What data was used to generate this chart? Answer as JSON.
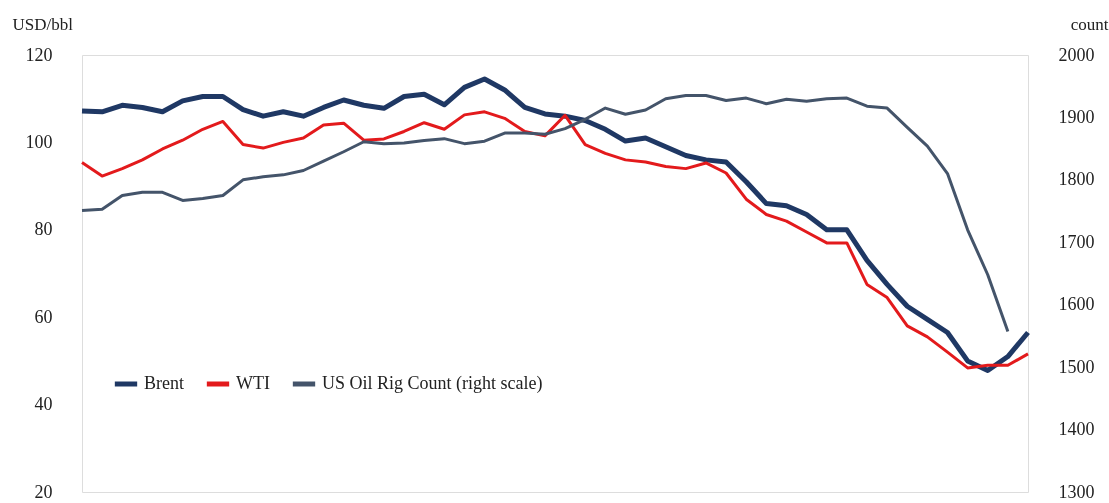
{
  "chart_data": {
    "type": "line",
    "categories": [
      null,
      null,
      null,
      null,
      null,
      null,
      null,
      null,
      null,
      null,
      null,
      null,
      null,
      null,
      null,
      null,
      null,
      null,
      null,
      null,
      null,
      null,
      null,
      null,
      null,
      null,
      null,
      null,
      null,
      null,
      null,
      null,
      null,
      null,
      null,
      null,
      null,
      null,
      null,
      null,
      null,
      null,
      null,
      null,
      null,
      null,
      null,
      null
    ],
    "ylabel": "USD/bbl",
    "y2label": "count",
    "ylim": [
      20,
      120
    ],
    "yticks": [
      20,
      40,
      60,
      80,
      100,
      120
    ],
    "y2lim": [
      1300,
      2000
    ],
    "y2ticks": [
      1300,
      1400,
      1500,
      1600,
      1700,
      1800,
      1900,
      2000
    ],
    "legend": "bottom left",
    "series": [
      {
        "name": "Brent",
        "color": "#1f3864",
        "values": [
          107.2,
          107,
          108.5,
          108,
          107,
          109.5,
          110.5,
          110.5,
          107.5,
          106,
          107,
          106,
          108,
          109.7,
          108.5,
          107.8,
          110.5,
          111,
          108.6,
          112.6,
          114.5,
          112,
          108,
          106.5,
          106,
          105,
          103,
          100.3,
          101,
          99,
          97,
          96,
          95.5,
          91,
          86,
          85.5,
          83.5,
          80,
          80,
          73,
          67.5,
          62.5,
          59.5,
          56.5,
          50,
          47.8,
          51,
          56.5
        ]
      },
      {
        "name": "WTI",
        "color": "#e31a1c",
        "values": [
          95.4,
          92.3,
          94,
          96,
          98.5,
          100.5,
          103,
          104.8,
          99.5,
          98.7,
          100,
          101,
          104,
          104.4,
          100.5,
          100.8,
          102.5,
          104.5,
          103,
          106.3,
          107,
          105.5,
          102.5,
          101.5,
          106.2,
          99.5,
          97.5,
          96,
          95.5,
          94.5,
          94,
          95.3,
          93,
          87,
          83.5,
          82,
          79.5,
          77,
          77,
          67.5,
          64.5,
          58,
          55.5,
          52,
          48.4,
          49,
          49,
          51.6
        ]
      },
      {
        "name": "US Oil Rig Count (right scale)",
        "color": "#44546a",
        "axis": "y2",
        "values": [
          1751,
          1753,
          1775,
          1780,
          1780,
          1767,
          1770,
          1775,
          1800,
          1805,
          1808,
          1815,
          1830,
          1845,
          1861,
          1858,
          1859,
          1863,
          1866,
          1858,
          1862,
          1875,
          1875,
          1873,
          1882,
          1897,
          1915,
          1905,
          1912,
          1930,
          1935,
          1935,
          1927,
          1931,
          1922,
          1929,
          1926,
          1930,
          1931,
          1918,
          1915,
          1884,
          1854,
          1810,
          1720,
          1648,
          1557,
          null
        ]
      }
    ]
  }
}
